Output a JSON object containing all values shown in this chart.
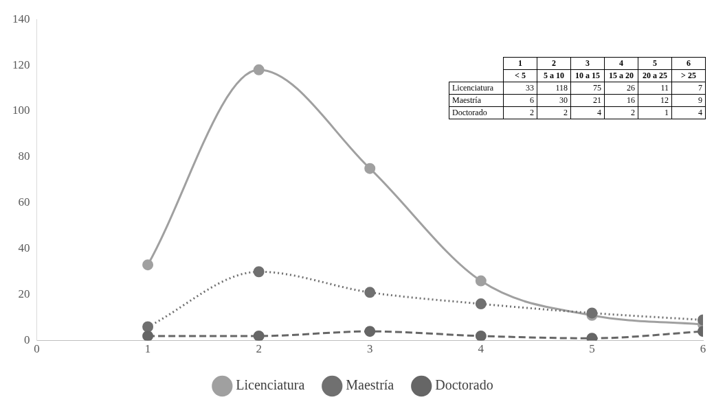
{
  "chart_data": [
    {
      "type": "line",
      "x": [
        1,
        2,
        3,
        4,
        5,
        6
      ],
      "xlim": [
        0,
        6
      ],
      "xticks": [
        0,
        1,
        2,
        3,
        4,
        5,
        6
      ],
      "ylim": [
        0,
        140
      ],
      "yticks": [
        0,
        20,
        40,
        60,
        80,
        100,
        120,
        140
      ],
      "grid": false,
      "legend": "bottom",
      "marker": "circle",
      "series": [
        {
          "name": "Licenciatura",
          "color": "#a0a0a0",
          "line_style": "solid",
          "values": [
            33,
            118,
            75,
            26,
            11,
            7
          ]
        },
        {
          "name": "Maestría",
          "color": "#707070",
          "line_style": "dotted",
          "values": [
            6,
            30,
            21,
            16,
            12,
            9
          ]
        },
        {
          "name": "Doctorado",
          "color": "#666666",
          "line_style": "dashed",
          "values": [
            2,
            2,
            4,
            2,
            1,
            4
          ]
        }
      ]
    },
    {
      "type": "heatmap",
      "annotations": [
        "1",
        "2",
        "3",
        "4",
        "5",
        "6"
      ],
      "categories": [
        "< 5",
        "5 a 10",
        "10 a 15",
        "15 a 20",
        "20 a 25",
        "> 25"
      ],
      "y_categories": [
        "Licenciatura",
        "Maestría",
        "Doctorado"
      ],
      "data_labels": true,
      "cells": [
        [
          33,
          118,
          75,
          26,
          11,
          7
        ],
        [
          6,
          30,
          21,
          16,
          12,
          9
        ],
        [
          2,
          2,
          4,
          2,
          1,
          4
        ]
      ]
    }
  ]
}
